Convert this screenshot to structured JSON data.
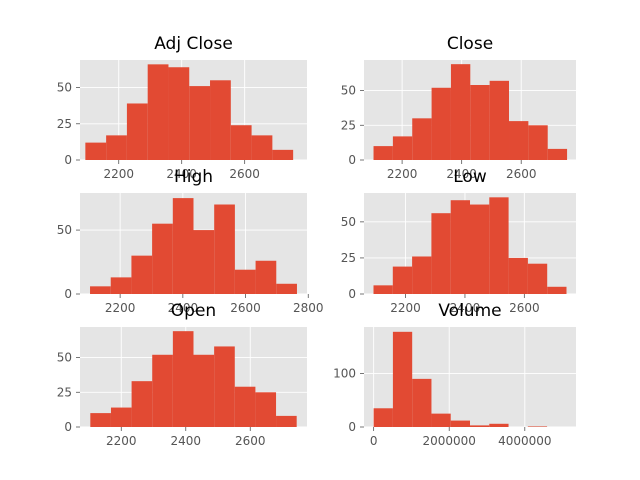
{
  "chart_data": [
    {
      "type": "bar",
      "title": "Adj Close",
      "bin_edges": [
        2094,
        2160,
        2226,
        2292,
        2358,
        2424,
        2490,
        2556,
        2622,
        2688,
        2754
      ],
      "counts": [
        12,
        17,
        39,
        66,
        64,
        51,
        55,
        24,
        17,
        7
      ],
      "xlim": [
        2077,
        2798
      ],
      "ylim": [
        0,
        69
      ],
      "xticks": [
        {
          "value": 2200,
          "label": "2200"
        },
        {
          "value": 2400,
          "label": "2400"
        },
        {
          "value": 2600,
          "label": "2600"
        }
      ],
      "yticks": [
        {
          "value": 0,
          "label": "0"
        },
        {
          "value": 25,
          "label": "25"
        },
        {
          "value": 50,
          "label": "50"
        }
      ],
      "bar_color": "#E24A33"
    },
    {
      "type": "bar",
      "title": "Close",
      "bin_edges": [
        2104,
        2169,
        2234,
        2299,
        2364,
        2429,
        2494,
        2559,
        2624,
        2689,
        2754
      ],
      "counts": [
        10,
        17,
        30,
        52,
        69,
        54,
        57,
        28,
        25,
        8
      ],
      "xlim": [
        2072,
        2784
      ],
      "ylim": [
        0,
        72
      ],
      "xticks": [
        {
          "value": 2200,
          "label": "2200"
        },
        {
          "value": 2400,
          "label": "2400"
        },
        {
          "value": 2600,
          "label": "2600"
        }
      ],
      "yticks": [
        {
          "value": 0,
          "label": "0"
        },
        {
          "value": 25,
          "label": "25"
        },
        {
          "value": 50,
          "label": "50"
        }
      ],
      "bar_color": "#E24A33"
    },
    {
      "type": "bar",
      "title": "High",
      "bin_edges": [
        2104,
        2170,
        2236,
        2302,
        2368,
        2434,
        2500,
        2566,
        2632,
        2698,
        2764
      ],
      "counts": [
        6,
        13,
        30,
        55,
        75,
        50,
        70,
        19,
        26,
        8
      ],
      "xlim": [
        2072,
        2796
      ],
      "ylim": [
        0,
        79
      ],
      "xticks": [
        {
          "value": 2200,
          "label": "2200"
        },
        {
          "value": 2400,
          "label": "2400"
        },
        {
          "value": 2600,
          "label": "2600"
        },
        {
          "value": 2800,
          "label": "2800"
        }
      ],
      "yticks": [
        {
          "value": 0,
          "label": "0"
        },
        {
          "value": 50,
          "label": "50"
        }
      ],
      "bar_color": "#E24A33"
    },
    {
      "type": "bar",
      "title": "Low",
      "bin_edges": [
        2092,
        2157,
        2222,
        2287,
        2352,
        2417,
        2482,
        2547,
        2612,
        2677,
        2742
      ],
      "counts": [
        6,
        19,
        26,
        56,
        65,
        62,
        67,
        25,
        21,
        5
      ],
      "xlim": [
        2060,
        2774
      ],
      "ylim": [
        0,
        70
      ],
      "xticks": [
        {
          "value": 2200,
          "label": "2200"
        },
        {
          "value": 2400,
          "label": "2400"
        },
        {
          "value": 2600,
          "label": "2600"
        }
      ],
      "yticks": [
        {
          "value": 0,
          "label": "0"
        },
        {
          "value": 25,
          "label": "25"
        },
        {
          "value": 50,
          "label": "50"
        }
      ],
      "bar_color": "#E24A33"
    },
    {
      "type": "bar",
      "title": "Open",
      "bin_edges": [
        2104,
        2168,
        2232,
        2296,
        2360,
        2424,
        2488,
        2552,
        2616,
        2680,
        2744
      ],
      "counts": [
        10,
        14,
        33,
        52,
        69,
        52,
        58,
        29,
        25,
        8
      ],
      "xlim": [
        2072,
        2776
      ],
      "ylim": [
        0,
        72
      ],
      "xticks": [
        {
          "value": 2200,
          "label": "2200"
        },
        {
          "value": 2400,
          "label": "2400"
        },
        {
          "value": 2600,
          "label": "2600"
        }
      ],
      "yticks": [
        {
          "value": 0,
          "label": "0"
        },
        {
          "value": 25,
          "label": "25"
        },
        {
          "value": 50,
          "label": "50"
        }
      ],
      "bar_color": "#E24A33"
    },
    {
      "type": "bar",
      "title": "Volume",
      "bin_edges": [
        0,
        510000,
        1020000,
        1530000,
        2040000,
        2550000,
        3060000,
        3570000,
        4080000,
        4590000,
        5100000
      ],
      "counts": [
        35,
        178,
        90,
        25,
        12,
        3,
        6,
        0,
        1,
        0
      ],
      "xlim": [
        -255000,
        5355000
      ],
      "ylim": [
        0,
        187
      ],
      "xticks": [
        {
          "value": 0,
          "label": "0"
        },
        {
          "value": 2000000,
          "label": "2000000"
        },
        {
          "value": 4000000,
          "label": "4000000"
        }
      ],
      "yticks": [
        {
          "value": 0,
          "label": "0"
        },
        {
          "value": 100,
          "label": "100"
        }
      ],
      "bar_color": "#E24A33"
    }
  ]
}
